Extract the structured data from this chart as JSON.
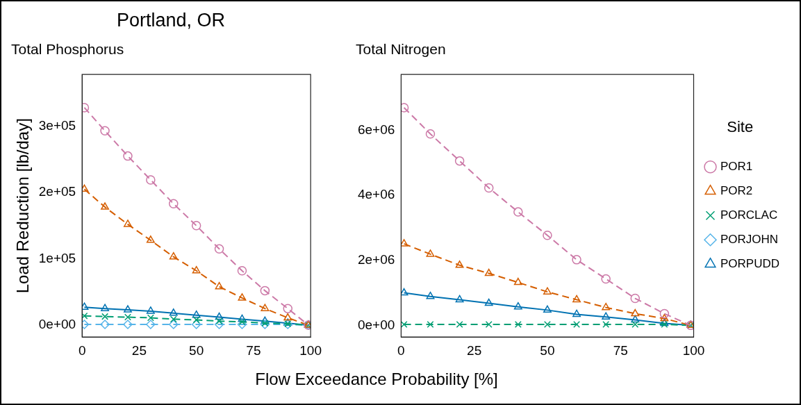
{
  "chart_data": [
    {
      "type": "line",
      "title": "Portland, OR",
      "subtitle": "Total Phosphorus",
      "xlabel": "Flow Exceedance Probability [%]",
      "ylabel": "Load Reduction [lb/day]",
      "x": [
        1,
        10,
        20,
        30,
        40,
        50,
        60,
        70,
        80,
        90,
        99
      ],
      "xlim": [
        0,
        100
      ],
      "xticks": [
        0,
        25,
        50,
        75,
        100
      ],
      "ylim": [
        -18000,
        378000
      ],
      "yticks": [
        {
          "value": 0,
          "label": "0e+00"
        },
        {
          "value": 100000,
          "label": "1e+05"
        },
        {
          "value": 200000,
          "label": "2e+05"
        },
        {
          "value": 300000,
          "label": "3e+05"
        }
      ],
      "grid": false,
      "legend": false,
      "series": [
        {
          "color": "#cc79a7",
          "marker": "circle",
          "line_style": "dashed",
          "values": [
            328000,
            293000,
            255000,
            219000,
            183000,
            150000,
            115000,
            82000,
            52000,
            25000,
            0
          ]
        },
        {
          "color": "#d55e00",
          "marker": "triangle",
          "line_style": "dashed",
          "values": [
            205000,
            178000,
            152000,
            128000,
            103000,
            82000,
            58000,
            41000,
            25000,
            11000,
            0
          ]
        },
        {
          "color": "#009e73",
          "marker": "cross",
          "line_style": "dashed",
          "values": [
            14000,
            13000,
            12000,
            11000,
            9000,
            8000,
            6000,
            5000,
            3000,
            2000,
            0
          ]
        },
        {
          "color": "#56b4e9",
          "marker": "diamond",
          "line_style": "dashed",
          "values": [
            1000,
            1000,
            1000,
            1000,
            1000,
            1000,
            1000,
            1000,
            1000,
            1000,
            0
          ]
        },
        {
          "color": "#0072b2",
          "marker": "triangle",
          "line_style": "solid",
          "values": [
            27000,
            25000,
            23000,
            21000,
            18000,
            15000,
            12000,
            9000,
            6000,
            3000,
            0
          ]
        }
      ]
    },
    {
      "type": "line",
      "subtitle": "Total Nitrogen",
      "legend_title": "Site",
      "x": [
        1,
        10,
        20,
        30,
        40,
        50,
        60,
        70,
        80,
        90,
        99
      ],
      "xlim": [
        0,
        100
      ],
      "xticks": [
        0,
        25,
        50,
        75,
        100
      ],
      "ylim": [
        -360000,
        7720000
      ],
      "yticks": [
        {
          "value": 0,
          "label": "0e+00"
        },
        {
          "value": 2000000,
          "label": "2e+06"
        },
        {
          "value": 4000000,
          "label": "4e+06"
        },
        {
          "value": 6000000,
          "label": "6e+06"
        }
      ],
      "grid": false,
      "legend": "right",
      "series": [
        {
          "name": "POR1",
          "color": "#cc79a7",
          "marker": "circle",
          "line_style": "dashed",
          "values": [
            6700000,
            5890000,
            5060000,
            4230000,
            3490000,
            2770000,
            2020000,
            1430000,
            830000,
            360000,
            0
          ]
        },
        {
          "name": "POR2",
          "color": "#d55e00",
          "marker": "triangle",
          "line_style": "dashed",
          "values": [
            2510000,
            2190000,
            1850000,
            1600000,
            1320000,
            1030000,
            790000,
            550000,
            360000,
            210000,
            0
          ]
        },
        {
          "name": "PORCLAC",
          "color": "#009e73",
          "marker": "cross",
          "line_style": "dashed",
          "values": [
            30000,
            30000,
            30000,
            30000,
            30000,
            30000,
            30000,
            30000,
            30000,
            30000,
            0
          ]
        },
        {
          "name": "PORJOHN",
          "color": "#56b4e9",
          "marker": "diamond",
          "line_style": "dashed",
          "values": [
            null,
            null,
            null,
            null,
            null,
            null,
            null,
            null,
            null,
            null,
            null
          ]
        },
        {
          "name": "PORPUDD",
          "color": "#0072b2",
          "marker": "triangle",
          "line_style": "solid",
          "values": [
            1000000,
            890000,
            790000,
            680000,
            570000,
            470000,
            340000,
            260000,
            170000,
            60000,
            0
          ]
        }
      ]
    }
  ]
}
